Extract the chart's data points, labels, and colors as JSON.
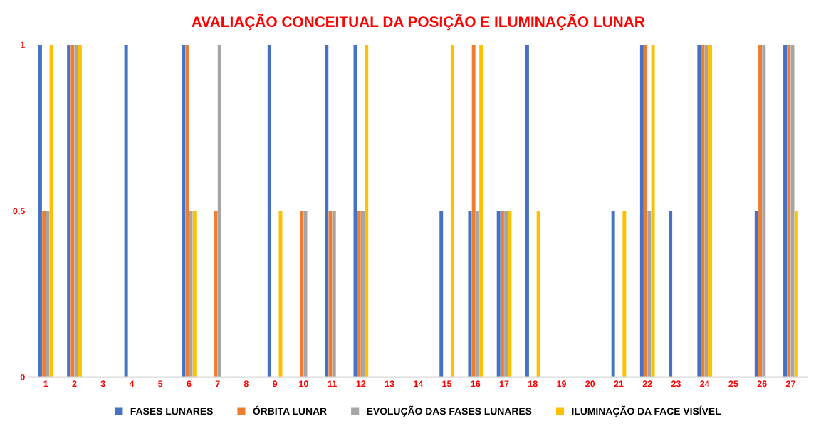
{
  "chart_data": {
    "type": "bar",
    "title": "AVALIAÇÃO CONCEITUAL DA POSIÇÃO E ILUMINAÇÃO LUNAR",
    "categories": [
      "1",
      "2",
      "3",
      "4",
      "5",
      "6",
      "7",
      "8",
      "9",
      "10",
      "11",
      "12",
      "13",
      "14",
      "15",
      "16",
      "17",
      "18",
      "19",
      "20",
      "21",
      "22",
      "23",
      "24",
      "25",
      "26",
      "27"
    ],
    "series": [
      {
        "name": "FASES LUNARES",
        "color": "#4472c4",
        "values": [
          1,
          1,
          0,
          1,
          0,
          1,
          0,
          0,
          1,
          0,
          1,
          1,
          0,
          0,
          0.5,
          0.5,
          0.5,
          1,
          0,
          0,
          0.5,
          1,
          0.5,
          1,
          0,
          0.5,
          1
        ]
      },
      {
        "name": "ÓRBITA LUNAR",
        "color": "#ed7d31",
        "values": [
          0.5,
          1,
          0,
          0,
          0,
          1,
          0.5,
          0,
          0,
          0.5,
          0.5,
          0.5,
          0,
          0,
          0,
          1,
          0.5,
          0,
          0,
          0,
          0,
          1,
          0,
          1,
          0,
          1,
          1
        ]
      },
      {
        "name": "EVOLUÇÃO DAS FASES LUNARES",
        "color": "#a5a5a5",
        "values": [
          0.5,
          1,
          0,
          0,
          0,
          0.5,
          1,
          0,
          0,
          0.5,
          0.5,
          0.5,
          0,
          0,
          0,
          0.5,
          0.5,
          0,
          0,
          0,
          0,
          0.5,
          0,
          1,
          0,
          1,
          1
        ]
      },
      {
        "name": "ILUMINAÇÃO DA FACE VISÍVEL",
        "color": "#ffc000",
        "values": [
          1,
          1,
          0,
          0,
          0,
          0.5,
          0,
          0,
          0.5,
          0,
          0,
          1,
          0,
          0,
          1,
          1,
          0.5,
          0.5,
          0,
          0,
          0.5,
          1,
          0,
          1,
          0,
          0,
          0.5
        ]
      }
    ],
    "ylim": [
      0,
      1
    ],
    "yticks": [
      0,
      {
        "value": 0.5,
        "label": "0,5"
      },
      1
    ],
    "grid": false,
    "legend": "bottom"
  }
}
